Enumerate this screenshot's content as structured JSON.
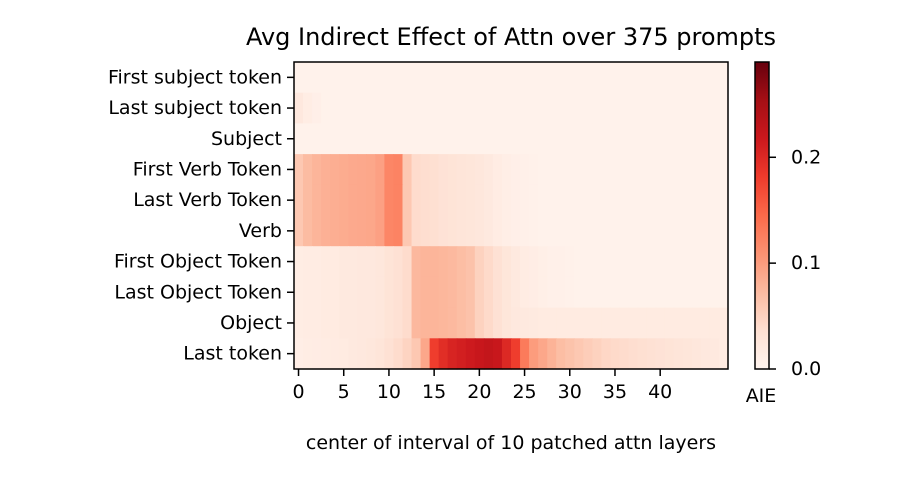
{
  "chart_data": {
    "type": "heatmap",
    "title": "Avg Indirect Effect of Attn over 375 prompts",
    "xlabel": "center of interval of 10 patched attn layers",
    "ylabel": "",
    "rows": [
      "First subject token",
      "Last subject token",
      "Subject",
      "First Verb Token",
      "Last Verb Token",
      "Verb",
      "First Object Token",
      "Last Object Token",
      "Object",
      "Last token"
    ],
    "x_ticks": [
      0,
      5,
      10,
      15,
      20,
      25,
      30,
      35,
      40
    ],
    "xlim": [
      -0.5,
      47.5
    ],
    "n_cols": 48,
    "colorbar": {
      "label": "AIE",
      "range": [
        0.0,
        0.29
      ],
      "ticks": [
        0.0,
        0.1,
        0.2
      ],
      "tick_labels": [
        "0.0",
        "0.1",
        "0.2"
      ],
      "colormap": "Reds"
    },
    "values": [
      [
        0.006,
        0.006,
        0.006,
        0.006,
        0.006,
        0.006,
        0.006,
        0.006,
        0.006,
        0.006,
        0.006,
        0.006,
        0.006,
        0.006,
        0.006,
        0.006,
        0.006,
        0.006,
        0.006,
        0.006,
        0.006,
        0.006,
        0.006,
        0.006,
        0.006,
        0.006,
        0.006,
        0.006,
        0.006,
        0.006,
        0.006,
        0.006,
        0.006,
        0.006,
        0.006,
        0.006,
        0.006,
        0.006,
        0.006,
        0.006,
        0.006,
        0.006,
        0.006,
        0.006,
        0.006,
        0.006,
        0.006,
        0.006
      ],
      [
        0.022,
        0.014,
        0.01,
        0.006,
        0.006,
        0.006,
        0.006,
        0.006,
        0.006,
        0.006,
        0.006,
        0.006,
        0.006,
        0.006,
        0.006,
        0.006,
        0.006,
        0.006,
        0.006,
        0.006,
        0.006,
        0.006,
        0.006,
        0.006,
        0.006,
        0.006,
        0.006,
        0.006,
        0.006,
        0.006,
        0.006,
        0.006,
        0.006,
        0.006,
        0.006,
        0.006,
        0.006,
        0.006,
        0.006,
        0.006,
        0.006,
        0.006,
        0.006,
        0.006,
        0.006,
        0.006,
        0.006,
        0.006
      ],
      [
        0.006,
        0.006,
        0.006,
        0.006,
        0.006,
        0.006,
        0.006,
        0.006,
        0.006,
        0.006,
        0.006,
        0.006,
        0.006,
        0.006,
        0.006,
        0.006,
        0.006,
        0.006,
        0.006,
        0.006,
        0.006,
        0.006,
        0.006,
        0.006,
        0.006,
        0.006,
        0.006,
        0.006,
        0.006,
        0.006,
        0.006,
        0.006,
        0.006,
        0.006,
        0.006,
        0.006,
        0.006,
        0.006,
        0.006,
        0.006,
        0.006,
        0.006,
        0.006,
        0.006,
        0.006,
        0.006,
        0.006,
        0.006
      ],
      [
        0.06,
        0.072,
        0.078,
        0.082,
        0.084,
        0.086,
        0.088,
        0.089,
        0.09,
        0.096,
        0.12,
        0.122,
        0.06,
        0.04,
        0.038,
        0.036,
        0.032,
        0.03,
        0.028,
        0.026,
        0.024,
        0.02,
        0.016,
        0.012,
        0.01,
        0.008,
        0.007,
        0.006,
        0.006,
        0.006,
        0.006,
        0.006,
        0.006,
        0.006,
        0.006,
        0.006,
        0.006,
        0.006,
        0.006,
        0.006,
        0.006,
        0.006,
        0.006,
        0.006,
        0.006,
        0.006,
        0.006,
        0.006
      ],
      [
        0.06,
        0.072,
        0.078,
        0.082,
        0.084,
        0.086,
        0.088,
        0.089,
        0.09,
        0.096,
        0.12,
        0.122,
        0.06,
        0.04,
        0.038,
        0.036,
        0.032,
        0.03,
        0.028,
        0.026,
        0.024,
        0.02,
        0.016,
        0.012,
        0.01,
        0.008,
        0.007,
        0.006,
        0.006,
        0.006,
        0.006,
        0.006,
        0.006,
        0.006,
        0.006,
        0.006,
        0.006,
        0.006,
        0.006,
        0.006,
        0.006,
        0.006,
        0.006,
        0.006,
        0.006,
        0.006,
        0.006,
        0.006
      ],
      [
        0.06,
        0.072,
        0.078,
        0.082,
        0.084,
        0.086,
        0.088,
        0.089,
        0.09,
        0.096,
        0.12,
        0.122,
        0.06,
        0.04,
        0.038,
        0.036,
        0.032,
        0.03,
        0.028,
        0.026,
        0.024,
        0.02,
        0.016,
        0.012,
        0.01,
        0.008,
        0.007,
        0.006,
        0.006,
        0.006,
        0.006,
        0.006,
        0.006,
        0.006,
        0.006,
        0.006,
        0.006,
        0.006,
        0.006,
        0.006,
        0.006,
        0.006,
        0.006,
        0.006,
        0.006,
        0.006,
        0.006,
        0.006
      ],
      [
        0.014,
        0.016,
        0.016,
        0.018,
        0.018,
        0.02,
        0.02,
        0.022,
        0.022,
        0.024,
        0.03,
        0.034,
        0.04,
        0.075,
        0.078,
        0.078,
        0.076,
        0.074,
        0.07,
        0.066,
        0.05,
        0.042,
        0.034,
        0.026,
        0.02,
        0.016,
        0.013,
        0.011,
        0.009,
        0.008,
        0.007,
        0.006,
        0.006,
        0.006,
        0.006,
        0.006,
        0.006,
        0.006,
        0.006,
        0.006,
        0.006,
        0.006,
        0.006,
        0.006,
        0.006,
        0.006,
        0.006,
        0.006
      ],
      [
        0.014,
        0.016,
        0.016,
        0.018,
        0.018,
        0.02,
        0.02,
        0.022,
        0.022,
        0.024,
        0.03,
        0.034,
        0.04,
        0.075,
        0.078,
        0.078,
        0.076,
        0.074,
        0.07,
        0.066,
        0.05,
        0.042,
        0.034,
        0.026,
        0.02,
        0.016,
        0.013,
        0.011,
        0.009,
        0.008,
        0.007,
        0.006,
        0.006,
        0.006,
        0.006,
        0.006,
        0.006,
        0.006,
        0.006,
        0.006,
        0.006,
        0.006,
        0.006,
        0.006,
        0.006,
        0.006,
        0.006,
        0.006
      ],
      [
        0.014,
        0.016,
        0.016,
        0.018,
        0.018,
        0.02,
        0.02,
        0.022,
        0.022,
        0.024,
        0.03,
        0.034,
        0.04,
        0.075,
        0.078,
        0.078,
        0.076,
        0.074,
        0.07,
        0.066,
        0.05,
        0.042,
        0.034,
        0.026,
        0.022,
        0.02,
        0.019,
        0.018,
        0.018,
        0.018,
        0.018,
        0.018,
        0.018,
        0.018,
        0.018,
        0.018,
        0.018,
        0.018,
        0.018,
        0.018,
        0.018,
        0.018,
        0.018,
        0.018,
        0.018,
        0.018,
        0.018,
        0.018
      ],
      [
        0.012,
        0.014,
        0.015,
        0.016,
        0.017,
        0.018,
        0.02,
        0.022,
        0.024,
        0.028,
        0.034,
        0.04,
        0.048,
        0.06,
        0.09,
        0.18,
        0.195,
        0.205,
        0.21,
        0.215,
        0.22,
        0.225,
        0.22,
        0.2,
        0.18,
        0.13,
        0.1,
        0.09,
        0.08,
        0.07,
        0.065,
        0.06,
        0.055,
        0.05,
        0.045,
        0.042,
        0.04,
        0.038,
        0.036,
        0.034,
        0.032,
        0.03,
        0.028,
        0.026,
        0.024,
        0.022,
        0.02,
        0.018
      ]
    ]
  }
}
